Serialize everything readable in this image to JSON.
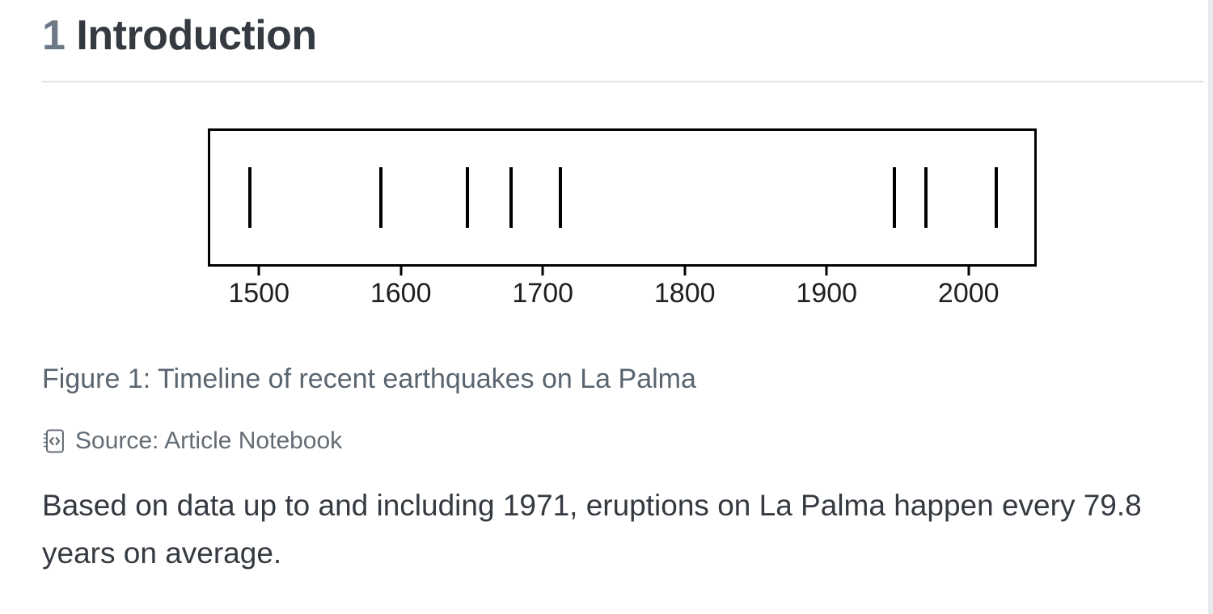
{
  "heading": {
    "number": "1",
    "title": "Introduction"
  },
  "figure": {
    "caption": "Figure 1: Timeline of recent earthquakes on La Palma",
    "source": "Source: Article Notebook",
    "source_icon": "journal-code-icon"
  },
  "paragraph": "Based on data up to and including 1971, eruptions on La Palma happen every 79.8 years on average.",
  "chart_data": {
    "type": "scatter",
    "subtype": "eventplot-timeline",
    "x": [
      1492,
      1585,
      1646,
      1677,
      1712,
      1949,
      1971,
      2021
    ],
    "marker": "vertical-line",
    "title": "",
    "xlabel": "",
    "ylabel": "",
    "xlim": [
      1464,
      2048
    ],
    "xticks": [
      1500,
      1600,
      1700,
      1800,
      1900,
      2000
    ],
    "grid": false,
    "legend": null,
    "line_color": "#000000",
    "frame_color": "#000000",
    "tick_label_color": "#1f1f1f"
  },
  "colors": {
    "heading_number": "#6d7a86",
    "heading_text": "#343a40",
    "divider": "#dee2e6",
    "caption": "#5a6570",
    "source": "#646c74",
    "body_text": "#343a40",
    "scrollbar": "#e9ecef"
  }
}
